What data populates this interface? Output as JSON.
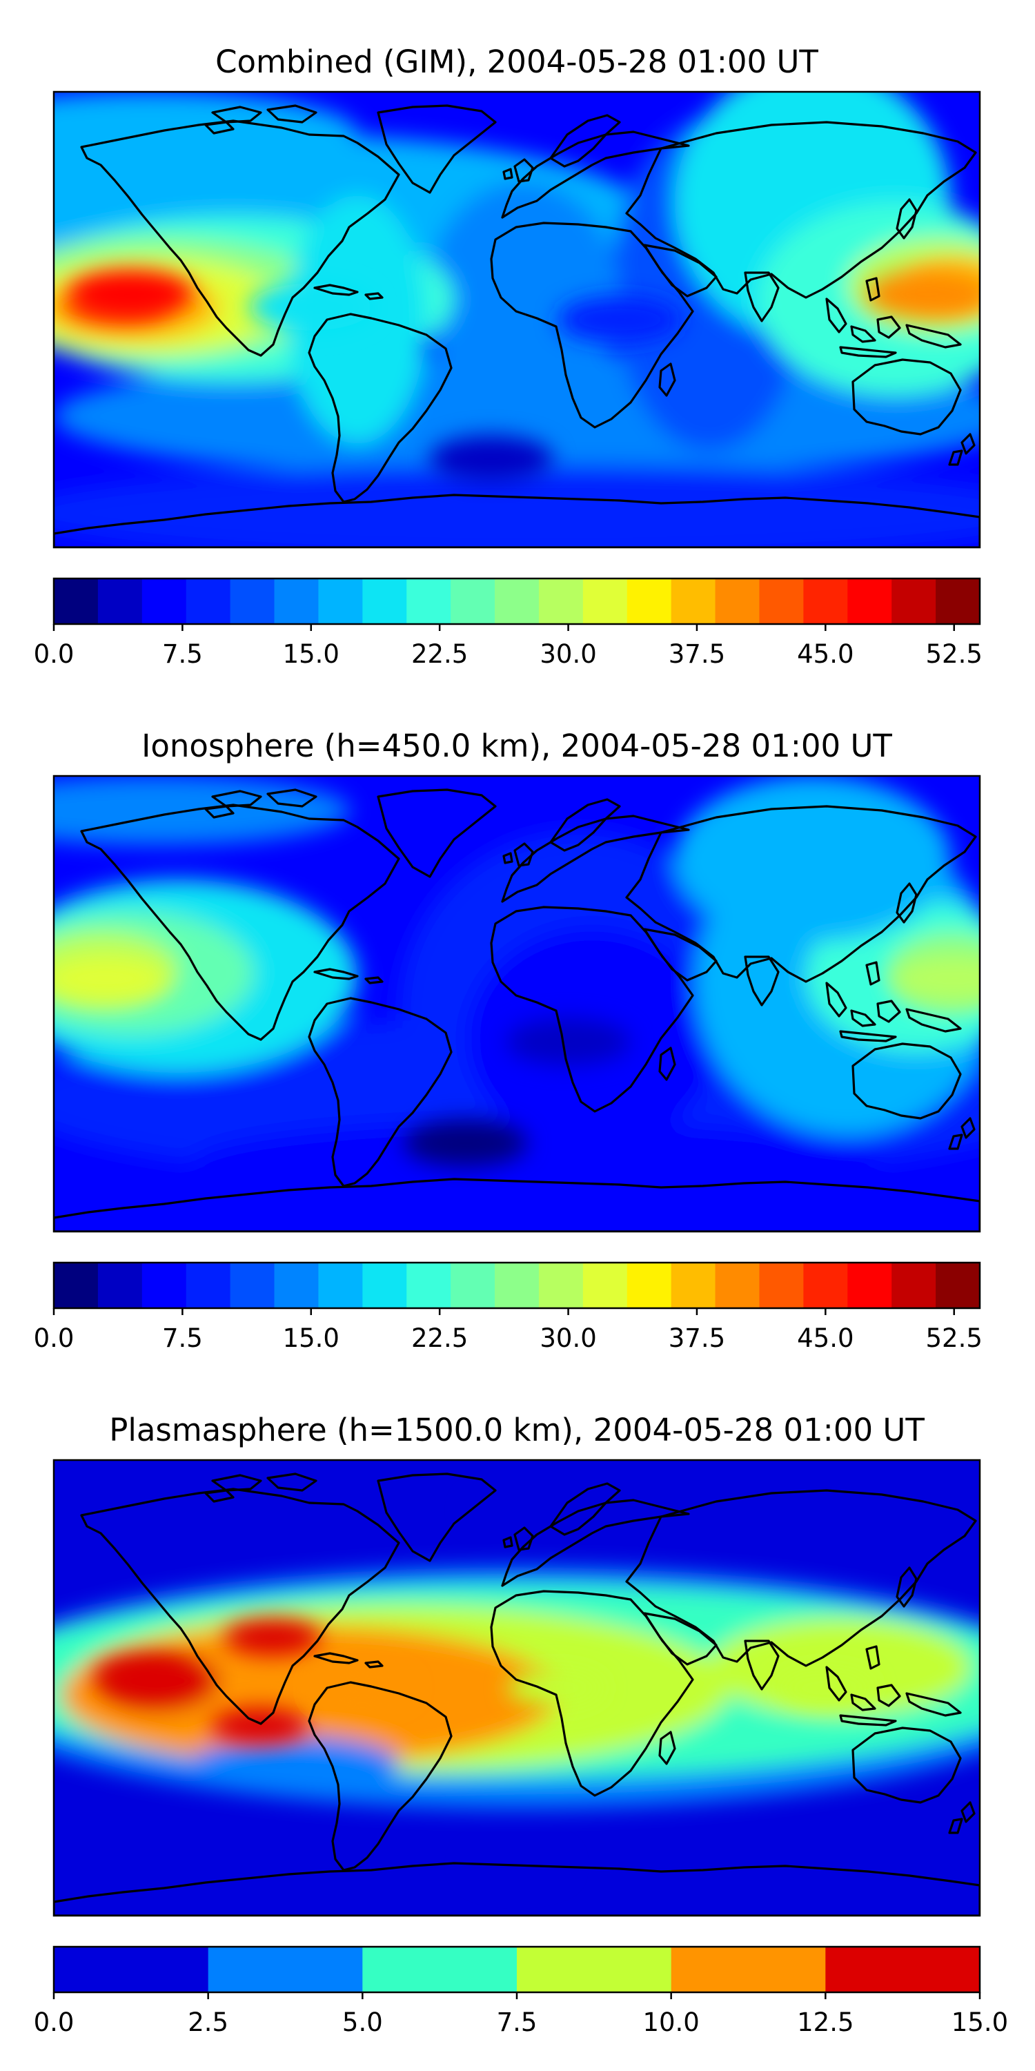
{
  "figure": {
    "panels": [
      {
        "title": "Combined (GIM), 2004-05-28 01:00 UT",
        "colorbar": {
          "ticks": [
            "0.0",
            "7.5",
            "15.0",
            "22.5",
            "30.0",
            "37.5",
            "45.0",
            "52.5"
          ],
          "colors": [
            "#00007f",
            "#0000c4",
            "#0000ff",
            "#0020ff",
            "#0050ff",
            "#0084ff",
            "#00b4ff",
            "#0de4f4",
            "#3bffdb",
            "#63ffb3",
            "#8dff8a",
            "#b7ff60",
            "#e0ff37",
            "#fff200",
            "#ffbd00",
            "#ff8b00",
            "#ff5900",
            "#ff2400",
            "#ff0000",
            "#c40000",
            "#8b0000"
          ]
        }
      },
      {
        "title": "Ionosphere  (h=450.0 km), 2004-05-28 01:00 UT",
        "colorbar": {
          "ticks": [
            "0.0",
            "7.5",
            "15.0",
            "22.5",
            "30.0",
            "37.5",
            "45.0",
            "52.5"
          ],
          "colors": [
            "#00007f",
            "#0000c4",
            "#0000ff",
            "#0020ff",
            "#0050ff",
            "#0084ff",
            "#00b4ff",
            "#0de4f4",
            "#3bffdb",
            "#63ffb3",
            "#8dff8a",
            "#b7ff60",
            "#e0ff37",
            "#fff200",
            "#ffbd00",
            "#ff8b00",
            "#ff5900",
            "#ff2400",
            "#ff0000",
            "#c40000",
            "#8b0000"
          ]
        }
      },
      {
        "title": "Plasmasphere (h=1500.0 km), 2004-05-28 01:00 UT",
        "colorbar": {
          "ticks": [
            "0.0",
            "2.5",
            "5.0",
            "7.5",
            "10.0",
            "12.5",
            "15.0"
          ],
          "colors": [
            "#0000dc",
            "#0080ff",
            "#35ffc3",
            "#c3ff35",
            "#ff9400",
            "#dc0000"
          ]
        }
      }
    ]
  },
  "chart_data": [
    {
      "type": "heatmap",
      "title": "Combined (GIM), 2004-05-28 01:00 UT",
      "map": "world, equirectangular, coastlines",
      "xlim": [
        -180,
        180
      ],
      "ylim": [
        -90,
        90
      ],
      "colorbar_range": [
        0.0,
        54.0
      ],
      "colorbar_levels": 21,
      "colorbar_ticks": [
        0.0,
        7.5,
        15.0,
        22.5,
        30.0,
        37.5,
        45.0,
        52.5
      ],
      "features": [
        {
          "label": "maximum over central Pacific",
          "lon": -150,
          "lat": 10,
          "value": 47
        },
        {
          "label": "maximum over western Pacific",
          "lon": 160,
          "lat": 10,
          "value": 41
        },
        {
          "label": "equatorial band over the Americas",
          "lon": -80,
          "lat": 5,
          "value": 20
        },
        {
          "label": "minimum over Africa / Indian Ocean",
          "lon": 40,
          "lat": 0,
          "value": 8
        },
        {
          "label": "minimum over southern Atlantic",
          "lon": -10,
          "lat": -55,
          "value": 5
        }
      ]
    },
    {
      "type": "heatmap",
      "title": "Ionosphere  (h=450.0 km), 2004-05-28 01:00 UT",
      "map": "world, equirectangular, coastlines",
      "xlim": [
        -180,
        180
      ],
      "ylim": [
        -90,
        90
      ],
      "colorbar_range": [
        0.0,
        54.0
      ],
      "colorbar_levels": 21,
      "colorbar_ticks": [
        0.0,
        7.5,
        15.0,
        22.5,
        30.0,
        37.5,
        45.0,
        52.5
      ],
      "features": [
        {
          "label": "maximum over central Pacific",
          "lon": -160,
          "lat": 10,
          "value": 31
        },
        {
          "label": "maximum over western Pacific",
          "lon": 170,
          "lat": 10,
          "value": 30
        },
        {
          "label": "minimum over Africa / southern Atlantic",
          "lon": 20,
          "lat": -15,
          "value": 3
        },
        {
          "label": "minimum over southern Atlantic",
          "lon": -20,
          "lat": -55,
          "value": 2
        }
      ]
    },
    {
      "type": "heatmap",
      "title": "Plasmasphere (h=1500.0 km), 2004-05-28 01:00 UT",
      "map": "world, equirectangular, coastlines",
      "xlim": [
        -180,
        180
      ],
      "ylim": [
        -90,
        90
      ],
      "colorbar_range": [
        0.0,
        15.0
      ],
      "colorbar_levels": 6,
      "colorbar_ticks": [
        0.0,
        2.5,
        5.0,
        7.5,
        10.0,
        12.5,
        15.0
      ],
      "features": [
        {
          "label": "maximum over eastern Pacific",
          "lon": -145,
          "lat": 5,
          "value": 13
        },
        {
          "label": "maximum over Caribbean",
          "lon": -95,
          "lat": 20,
          "value": 13
        },
        {
          "label": "maximum off western South America",
          "lon": -100,
          "lat": -15,
          "value": 13
        },
        {
          "label": "band over South America / Atlantic",
          "lon": -60,
          "lat": 0,
          "value": 11
        },
        {
          "label": "band over Africa",
          "lon": 15,
          "lat": 0,
          "value": 9
        },
        {
          "label": "band over Indonesia",
          "lon": 120,
          "lat": 0,
          "value": 8.5
        },
        {
          "label": "northern high latitudes",
          "lon": 0,
          "lat": 70,
          "value": 1
        },
        {
          "label": "southern high latitudes",
          "lon": 0,
          "lat": -70,
          "value": 1
        }
      ]
    }
  ]
}
